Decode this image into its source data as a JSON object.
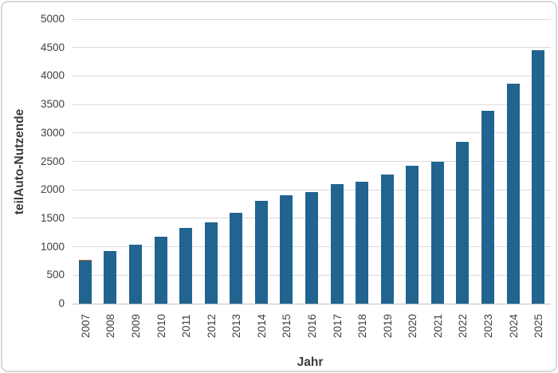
{
  "window": {
    "background": "#ffffff",
    "border_color": "#d8d8d8"
  },
  "chart_data": {
    "type": "bar",
    "title": "",
    "xlabel": "Jahr",
    "ylabel": "teilAuto-Nutzende",
    "ylim": [
      0,
      5000
    ],
    "ytick_step": 500,
    "yticks": [
      0,
      500,
      1000,
      1500,
      2000,
      2500,
      3000,
      3500,
      4000,
      4500,
      5000
    ],
    "ytick_labels": [
      "0",
      "500",
      "1000",
      "1500",
      "2000",
      "2500",
      "3000",
      "3500",
      "4000",
      "4500",
      "5000"
    ],
    "categories": [
      "2007",
      "2008",
      "2009",
      "2010",
      "2011",
      "2012",
      "2013",
      "2014",
      "2015",
      "2016",
      "2017",
      "2018",
      "2019",
      "2020",
      "2021",
      "2022",
      "2023",
      "2024",
      "2025"
    ],
    "values": [
      750,
      930,
      1030,
      1180,
      1330,
      1430,
      1590,
      1800,
      1900,
      1960,
      2100,
      2150,
      2270,
      2430,
      2490,
      2850,
      3390,
      3870,
      4460
    ],
    "accent_caps": [
      {
        "category": "2007",
        "value": 25
      }
    ],
    "bar_color": "#20648F",
    "accent_color": "#C0672F",
    "gridline_color": "#d9d9d9",
    "axis_line_color": "#bfbfbf",
    "tick_label_color": "#404040",
    "axis_title_color": "#3a3a3a",
    "grid": "horizontal",
    "legend": "none"
  }
}
